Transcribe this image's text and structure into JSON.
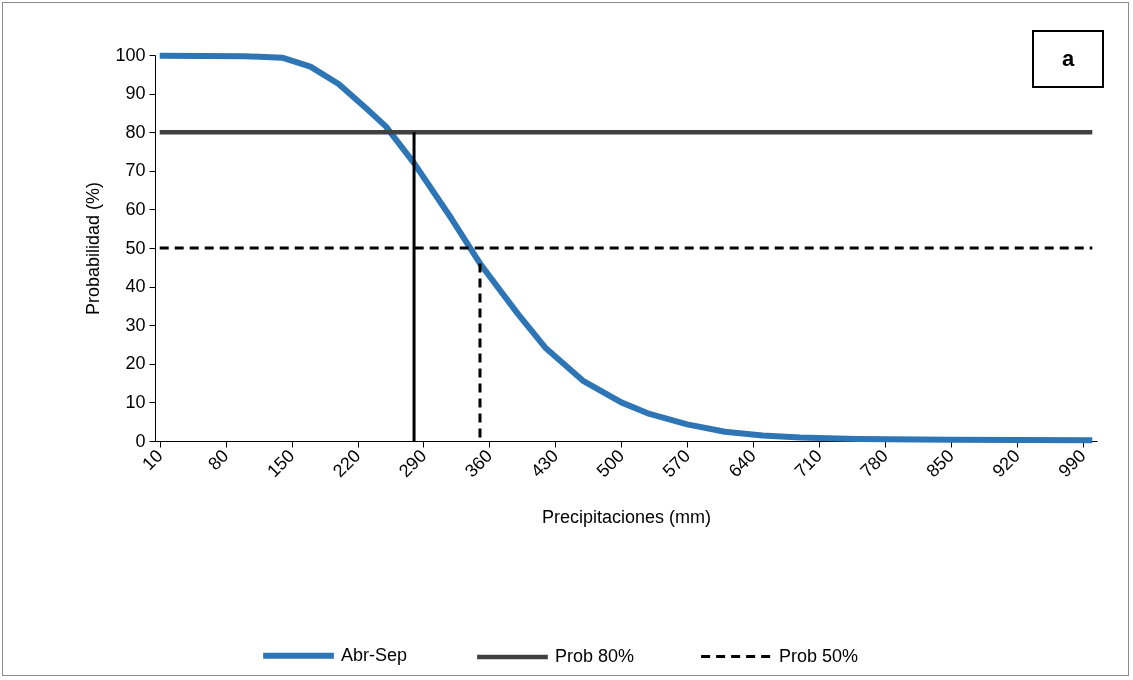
{
  "chart_data": {
    "type": "line",
    "xlabel": "Precipitaciones (mm)",
    "ylabel": "Probabilidad (%)",
    "annotations": [
      "a"
    ],
    "xlim": [
      5,
      1005
    ],
    "ylim": [
      0,
      100
    ],
    "xticks": [
      10,
      80,
      150,
      220,
      290,
      360,
      430,
      500,
      570,
      640,
      710,
      780,
      850,
      920,
      990
    ],
    "yticks": [
      0,
      10,
      20,
      30,
      40,
      50,
      60,
      70,
      80,
      90,
      100
    ],
    "grid": false,
    "legend": "bottom",
    "marker": "none",
    "series": [
      {
        "name": "Abr-Sep",
        "color": "#2e75b6",
        "line_style": "solid",
        "x": [
          10,
          100,
          140,
          170,
          200,
          230,
          250,
          280,
          320,
          350,
          390,
          420,
          460,
          500,
          530,
          570,
          610,
          650,
          690,
          750,
          850,
          1000
        ],
        "values": [
          99.8,
          99.7,
          99.3,
          97,
          92.5,
          86,
          81.5,
          72,
          57.5,
          46,
          33,
          24,
          15.5,
          10,
          7,
          4.3,
          2.4,
          1.4,
          0.9,
          0.5,
          0.3,
          0.2
        ]
      },
      {
        "name": "Prob 80%",
        "color": "#404040",
        "line_style": "solid",
        "x": [
          10,
          1000
        ],
        "values": [
          80,
          80
        ]
      },
      {
        "name": "Prob 50%",
        "color": "#000000",
        "line_style": "dashed",
        "x": [
          10,
          1000
        ],
        "values": [
          50,
          50
        ]
      },
      {
        "color": "#000000",
        "line_style": "solid",
        "x": [
          280,
          280
        ],
        "values": [
          80,
          0
        ]
      },
      {
        "color": "#000000",
        "line_style": "dashed",
        "x": [
          350,
          350
        ],
        "values": [
          46,
          0
        ]
      }
    ]
  }
}
